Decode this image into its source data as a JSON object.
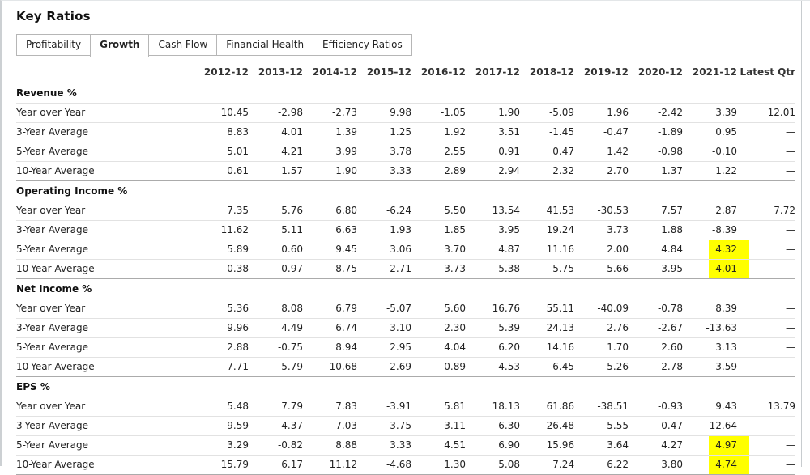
{
  "page": {
    "title": "Key Ratios"
  },
  "tabs": [
    {
      "label": "Profitability",
      "active": false
    },
    {
      "label": "Growth",
      "active": true
    },
    {
      "label": "Cash Flow",
      "active": false
    },
    {
      "label": "Financial Health",
      "active": false
    },
    {
      "label": "Efficiency Ratios",
      "active": false
    }
  ],
  "table": {
    "columns": [
      "2012-12",
      "2013-12",
      "2014-12",
      "2015-12",
      "2016-12",
      "2017-12",
      "2018-12",
      "2019-12",
      "2020-12",
      "2021-12",
      "Latest Qtr"
    ],
    "sections": [
      {
        "title": "Revenue %",
        "rows": [
          {
            "label": "Year over Year",
            "values": [
              "10.45",
              "-2.98",
              "-2.73",
              "9.98",
              "-1.05",
              "1.90",
              "-5.09",
              "1.96",
              "-2.42",
              "3.39",
              "12.01"
            ],
            "highlights": []
          },
          {
            "label": "3-Year Average",
            "values": [
              "8.83",
              "4.01",
              "1.39",
              "1.25",
              "1.92",
              "3.51",
              "-1.45",
              "-0.47",
              "-1.89",
              "0.95",
              "—"
            ],
            "highlights": []
          },
          {
            "label": "5-Year Average",
            "values": [
              "5.01",
              "4.21",
              "3.99",
              "3.78",
              "2.55",
              "0.91",
              "0.47",
              "1.42",
              "-0.98",
              "-0.10",
              "—"
            ],
            "highlights": []
          },
          {
            "label": "10-Year Average",
            "values": [
              "0.61",
              "1.57",
              "1.90",
              "3.33",
              "2.89",
              "2.94",
              "2.32",
              "2.70",
              "1.37",
              "1.22",
              "—"
            ],
            "highlights": []
          }
        ]
      },
      {
        "title": "Operating Income %",
        "rows": [
          {
            "label": "Year over Year",
            "values": [
              "7.35",
              "5.76",
              "6.80",
              "-6.24",
              "5.50",
              "13.54",
              "41.53",
              "-30.53",
              "7.57",
              "2.87",
              "7.72"
            ],
            "highlights": []
          },
          {
            "label": "3-Year Average",
            "values": [
              "11.62",
              "5.11",
              "6.63",
              "1.93",
              "1.85",
              "3.95",
              "19.24",
              "3.73",
              "1.88",
              "-8.39",
              "—"
            ],
            "highlights": []
          },
          {
            "label": "5-Year Average",
            "values": [
              "5.89",
              "0.60",
              "9.45",
              "3.06",
              "3.70",
              "4.87",
              "11.16",
              "2.00",
              "4.84",
              "4.32",
              "—"
            ],
            "highlights": [
              9
            ]
          },
          {
            "label": "10-Year Average",
            "values": [
              "-0.38",
              "0.97",
              "8.75",
              "2.71",
              "3.73",
              "5.38",
              "5.75",
              "5.66",
              "3.95",
              "4.01",
              "—"
            ],
            "highlights": [
              9
            ]
          }
        ]
      },
      {
        "title": "Net Income %",
        "rows": [
          {
            "label": "Year over Year",
            "values": [
              "5.36",
              "8.08",
              "6.79",
              "-5.07",
              "5.60",
              "16.76",
              "55.11",
              "-40.09",
              "-0.78",
              "8.39",
              "—"
            ],
            "highlights": []
          },
          {
            "label": "3-Year Average",
            "values": [
              "9.96",
              "4.49",
              "6.74",
              "3.10",
              "2.30",
              "5.39",
              "24.13",
              "2.76",
              "-2.67",
              "-13.63",
              "—"
            ],
            "highlights": []
          },
          {
            "label": "5-Year Average",
            "values": [
              "2.88",
              "-0.75",
              "8.94",
              "2.95",
              "4.04",
              "6.20",
              "14.16",
              "1.70",
              "2.60",
              "3.13",
              "—"
            ],
            "highlights": []
          },
          {
            "label": "10-Year Average",
            "values": [
              "7.71",
              "5.79",
              "10.68",
              "2.69",
              "0.89",
              "4.53",
              "6.45",
              "5.26",
              "2.78",
              "3.59",
              "—"
            ],
            "highlights": []
          }
        ]
      },
      {
        "title": "EPS %",
        "rows": [
          {
            "label": "Year over Year",
            "values": [
              "5.48",
              "7.79",
              "7.83",
              "-3.91",
              "5.81",
              "18.13",
              "61.86",
              "-38.51",
              "-0.93",
              "9.43",
              "13.79"
            ],
            "highlights": []
          },
          {
            "label": "3-Year Average",
            "values": [
              "9.59",
              "4.37",
              "7.03",
              "3.75",
              "3.11",
              "6.30",
              "26.48",
              "5.55",
              "-0.47",
              "-12.64",
              "—"
            ],
            "highlights": []
          },
          {
            "label": "5-Year Average",
            "values": [
              "3.29",
              "-0.82",
              "8.88",
              "3.33",
              "4.51",
              "6.90",
              "15.96",
              "3.64",
              "4.27",
              "4.97",
              "—"
            ],
            "highlights": [
              9
            ]
          },
          {
            "label": "10-Year Average",
            "values": [
              "15.79",
              "6.17",
              "11.12",
              "-4.68",
              "1.30",
              "5.08",
              "7.24",
              "6.22",
              "3.80",
              "4.74",
              "—"
            ],
            "highlights": [
              9
            ]
          }
        ]
      }
    ]
  },
  "colors": {
    "highlight": "#ffff00",
    "row_line": "#e2e2e2",
    "section_line": "#ababab",
    "header_line": "#a6a6a6",
    "text": "#222222"
  }
}
